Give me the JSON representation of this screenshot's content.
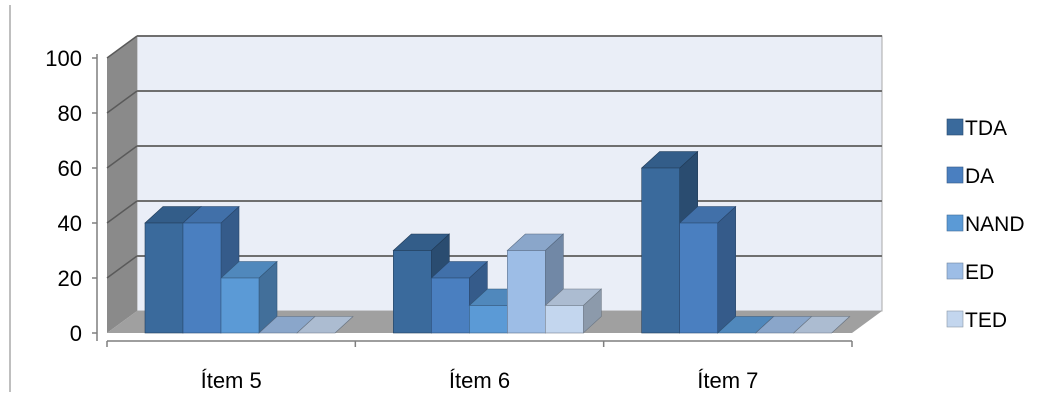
{
  "chart_data": {
    "type": "bar",
    "style": "3d-clustered-column",
    "categories": [
      "Ítem 5",
      "Ítem 6",
      "Ítem 7"
    ],
    "series": [
      {
        "name": "TDA",
        "values": [
          40,
          30,
          60
        ],
        "color": "#3a6a9c"
      },
      {
        "name": "DA",
        "values": [
          40,
          20,
          40
        ],
        "color": "#4a7fc0"
      },
      {
        "name": "NAND",
        "values": [
          20,
          10,
          0
        ],
        "color": "#5b9ad6"
      },
      {
        "name": "ED",
        "values": [
          0,
          30,
          0
        ],
        "color": "#9dbde6"
      },
      {
        "name": "TED",
        "values": [
          0,
          10,
          0
        ],
        "color": "#c3d6ee"
      }
    ],
    "ylim": [
      0,
      100
    ],
    "yticks": [
      "0",
      "20",
      "40",
      "60",
      "80",
      "100"
    ],
    "grid": true,
    "legend_position": "right",
    "title": "",
    "xlabel": "",
    "ylabel": ""
  }
}
